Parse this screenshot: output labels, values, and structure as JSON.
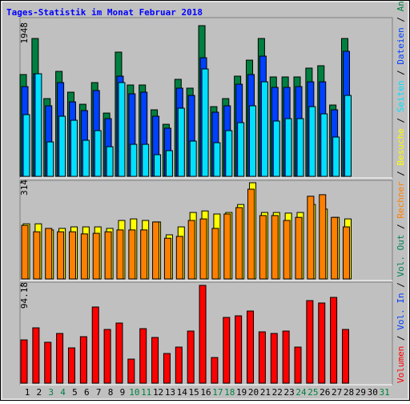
{
  "title": "Tages-Statistik im Monat Februar 2018",
  "legend_separator": " / ",
  "legend": [
    {
      "name": "Volumen",
      "color": "#ff0000"
    },
    {
      "name": "Vol. In",
      "color": "#0040ff"
    },
    {
      "name": "Vol. Out",
      "color": "#00805c"
    },
    {
      "name": "Rechner",
      "color": "#ff8000"
    },
    {
      "name": "Besuche",
      "color": "#ffff00"
    },
    {
      "name": "Seiten",
      "color": "#00e0ff"
    },
    {
      "name": "Dateien",
      "color": "#0040ff"
    },
    {
      "name": "Anfragen",
      "color": "#008040"
    }
  ],
  "chart_data": [
    {
      "type": "bar",
      "ylim": [
        0,
        1948
      ],
      "yticks": [
        1948
      ],
      "series": [
        {
          "name": "Anfragen",
          "color": "#008040",
          "values": [
            1316,
            1782,
            1005,
            1357,
            1088,
            932,
            1212,
            818,
            1606,
            1181,
            1181,
            860,
            673,
            1254,
            1140,
            1948,
            901,
            1005,
            1295,
            1502,
            1782,
            1285,
            1285,
            1285,
            1399,
            1430,
            922,
            1782,
            null,
            null,
            null
          ]
        },
        {
          "name": "Dateien",
          "color": "#0040ff",
          "values": [
            1160,
            1326,
            912,
            1212,
            963,
            850,
            1109,
            746,
            1295,
            1067,
            1088,
            777,
            622,
            1140,
            1046,
            1533,
            829,
            912,
            1191,
            1316,
            1554,
            1150,
            1150,
            1160,
            1222,
            1222,
            860,
            1616,
            null,
            null,
            null
          ]
        },
        {
          "name": "Seiten",
          "color": "#00e0ff",
          "values": [
            798,
            1326,
            445,
            777,
            725,
            466,
            591,
            383,
            1212,
            414,
            414,
            280,
            332,
            881,
            456,
            1388,
            435,
            591,
            694,
            912,
            1222,
            715,
            746,
            746,
            901,
            808,
            508,
            1046,
            null,
            null,
            null
          ]
        }
      ]
    },
    {
      "type": "bar",
      "ylim": [
        0,
        314
      ],
      "yticks": [
        314
      ],
      "series": [
        {
          "name": "Besuche",
          "color": "#ffff00",
          "values": [
            180,
            180,
            160,
            165,
            170,
            170,
            170,
            165,
            191,
            196,
            191,
            186,
            144,
            170,
            217,
            222,
            212,
            217,
            243,
            314,
            217,
            217,
            215,
            217,
            243,
            228,
            201,
            196,
            null,
            null,
            null
          ]
        },
        {
          "name": "Rechner",
          "color": "#ff8000",
          "values": [
            175,
            154,
            165,
            154,
            154,
            147,
            149,
            154,
            160,
            160,
            160,
            186,
            133,
            139,
            191,
            196,
            165,
            212,
            233,
            293,
            207,
            207,
            191,
            201,
            270,
            275,
            201,
            170,
            null,
            null,
            null
          ]
        }
      ]
    },
    {
      "type": "bar",
      "ylim": [
        0,
        94.18
      ],
      "yticks": [
        94.18
      ],
      "categories": [
        "1",
        "2",
        "3",
        "4",
        "5",
        "6",
        "7",
        "8",
        "9",
        "10",
        "11",
        "12",
        "13",
        "14",
        "15",
        "16",
        "17",
        "18",
        "19",
        "20",
        "21",
        "22",
        "23",
        "24",
        "25",
        "26",
        "27",
        "28",
        "29",
        "30",
        "31"
      ],
      "category_colors": [
        "#000000",
        "#000000",
        "#008040",
        "#008040",
        "#000000",
        "#000000",
        "#000000",
        "#000000",
        "#000000",
        "#008040",
        "#008040",
        "#000000",
        "#000000",
        "#000000",
        "#000000",
        "#000000",
        "#008040",
        "#008040",
        "#000000",
        "#000000",
        "#000000",
        "#000000",
        "#000000",
        "#008040",
        "#008040",
        "#000000",
        "#000000",
        "#000000",
        "#000000",
        "#000000",
        "#008040"
      ],
      "series": [
        {
          "name": "Volumen",
          "color": "#ff0000",
          "values": [
            41.68,
            53.27,
            39.37,
            47.86,
            33.97,
            44.77,
            73.34,
            51.72,
            57.9,
            23.16,
            52.49,
            44.0,
            28.56,
            34.74,
            50.18,
            94.18,
            24.7,
            63.3,
            64.85,
            69.48,
            49.41,
            47.86,
            50.18,
            34.74,
            79.51,
            77.2,
            82.6,
            51.72,
            null,
            null,
            null
          ]
        }
      ]
    }
  ]
}
